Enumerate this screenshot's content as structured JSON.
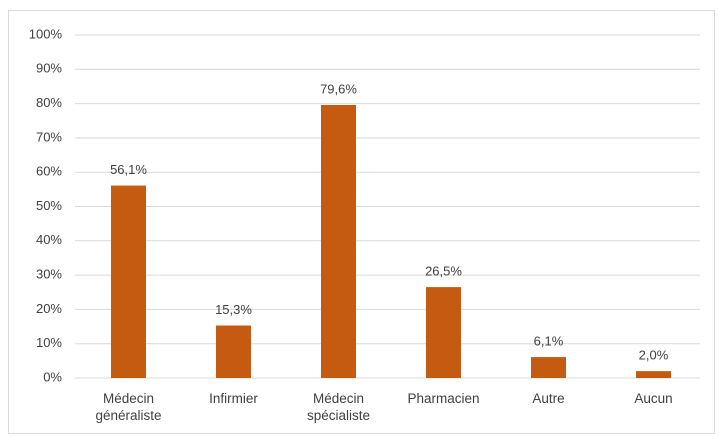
{
  "chart_data": {
    "type": "bar",
    "categories": [
      "Médecin généraliste",
      "Infirmier",
      "Médecin spécialiste",
      "Pharmacien",
      "Autre",
      "Aucun"
    ],
    "values": [
      56.1,
      15.3,
      79.6,
      26.5,
      6.1,
      2.0
    ],
    "value_labels": [
      "56,1%",
      "15,3%",
      "79,6%",
      "26,5%",
      "6,1%",
      "2,0%"
    ],
    "color": "#c55a11",
    "ylim": [
      0,
      100
    ],
    "yticks": [
      {
        "value": 0,
        "label": "0%"
      },
      {
        "value": 10,
        "label": "10%"
      },
      {
        "value": 20,
        "label": "20%"
      },
      {
        "value": 30,
        "label": "30%"
      },
      {
        "value": 40,
        "label": "40%"
      },
      {
        "value": 50,
        "label": "50%"
      },
      {
        "value": 60,
        "label": "60%"
      },
      {
        "value": 70,
        "label": "70%"
      },
      {
        "value": 80,
        "label": "80%"
      },
      {
        "value": 90,
        "label": "90%"
      },
      {
        "value": 100,
        "label": "100%"
      }
    ],
    "grid": true
  }
}
